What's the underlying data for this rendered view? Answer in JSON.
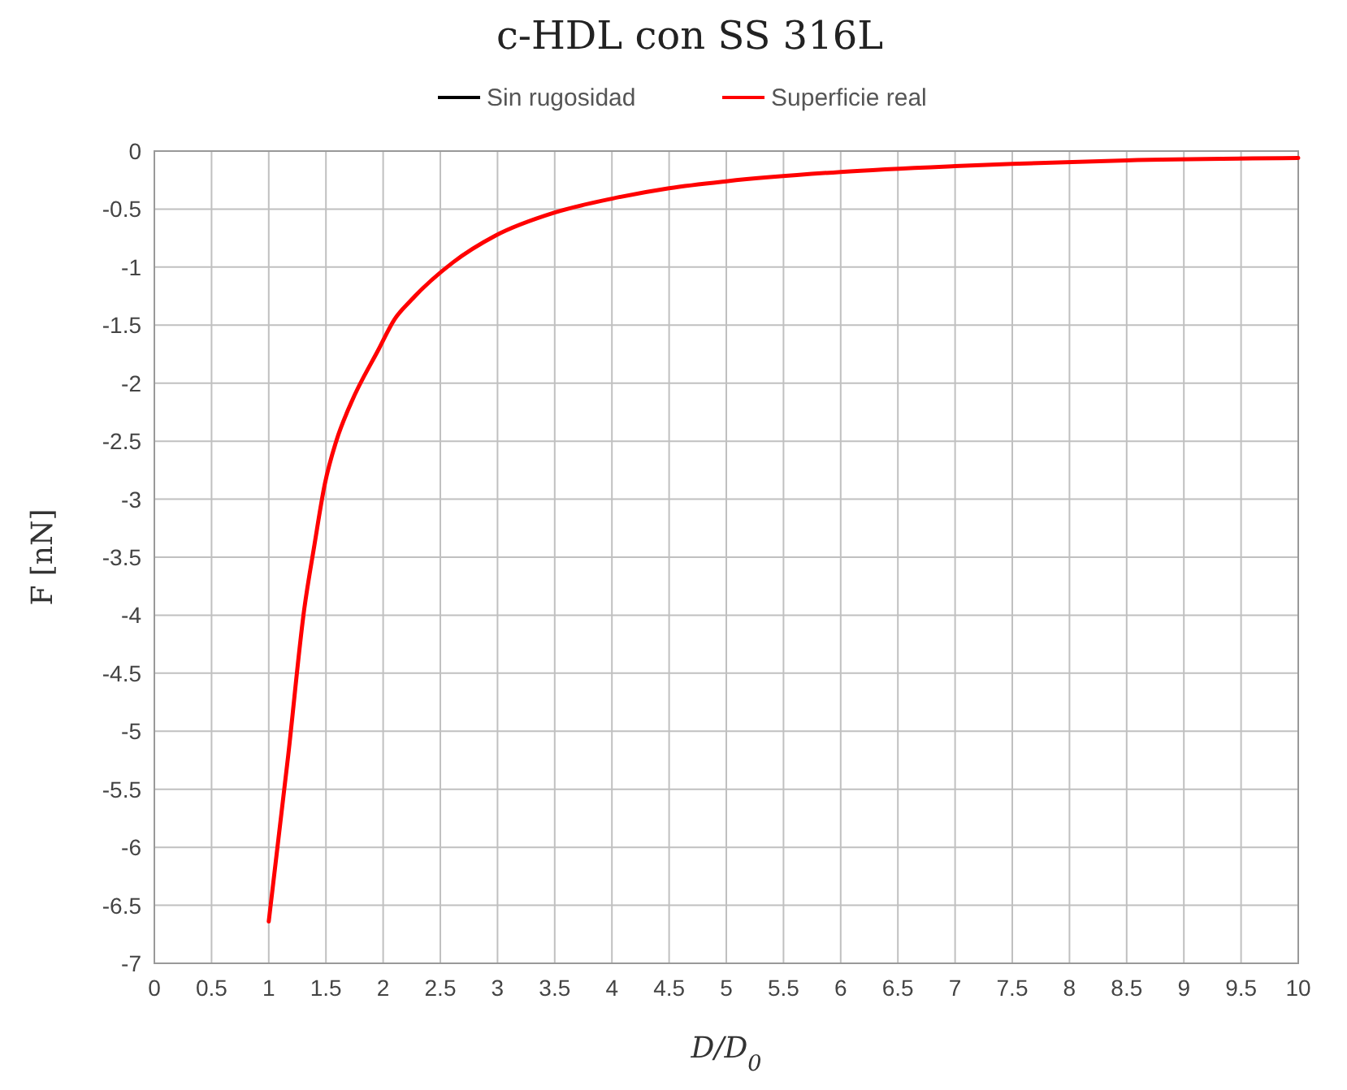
{
  "chart_data": {
    "type": "line",
    "title": "c-HDL con SS 316L",
    "xlabel": "D/D$_{0}$",
    "ylabel": "F [nN]",
    "xlim": [
      0,
      10
    ],
    "xticks": [
      0,
      0.5,
      1,
      1.5,
      2,
      2.5,
      3,
      3.5,
      4,
      4.5,
      5,
      5.5,
      6,
      6.5,
      7,
      7.5,
      8,
      8.5,
      9,
      9.5,
      10
    ],
    "ylim": [
      -7,
      0
    ],
    "yticks": [
      -7,
      -6.5,
      -6,
      -5.5,
      -5,
      -4.5,
      -4,
      -3.5,
      -3,
      -2.5,
      -2,
      -1.5,
      -1,
      -0.5,
      0
    ],
    "grid": true,
    "legend": "top",
    "marker": "none",
    "line_style": "solid",
    "x": [
      1,
      1.17,
      1.31,
      1.4,
      1.49,
      1.59,
      1.72,
      1.96,
      2.1,
      2.24,
      2.61,
      2.98,
      3.5,
      4,
      4.5,
      5,
      6,
      7,
      7.5,
      8.5,
      10
    ],
    "series": [
      {
        "name": "Sin rugosidad",
        "color": "#000000",
        "values": [
          null,
          null,
          null,
          null,
          null,
          null,
          null,
          null,
          null,
          null,
          null,
          null,
          null,
          null,
          null,
          null,
          null,
          null,
          null,
          null,
          null
        ]
      },
      {
        "name": "Superficie real",
        "color": "#ff0000",
        "values": [
          -6.64,
          -5.21,
          -3.95,
          -3.39,
          -2.87,
          -2.5,
          -2.17,
          -1.71,
          -1.45,
          -1.29,
          -0.96,
          -0.73,
          -0.53,
          -0.41,
          -0.32,
          -0.26,
          -0.18,
          -0.13,
          -0.11,
          -0.08,
          -0.06
        ]
      }
    ]
  }
}
